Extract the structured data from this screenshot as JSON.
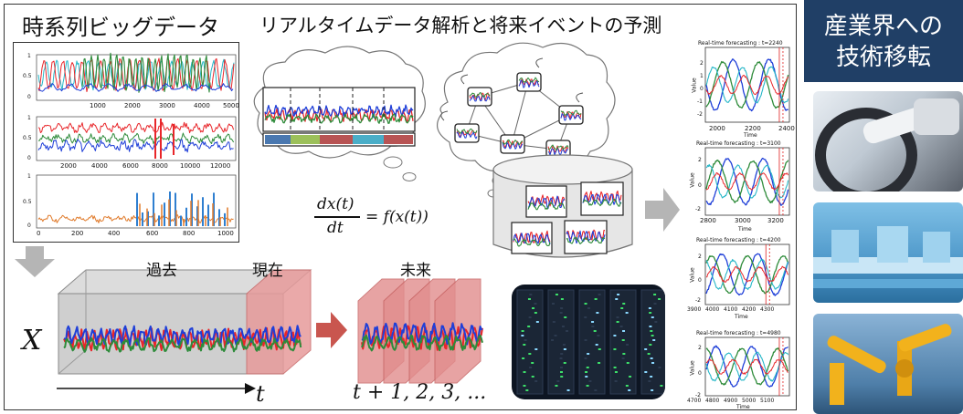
{
  "titles": {
    "big_data": "時系列ビッグデータ",
    "analysis": "リアルタイムデータ解析と将来イベントの予測",
    "industry_line1": "産業界への",
    "industry_line2": "技術移転"
  },
  "timeline": {
    "past": "過去",
    "present": "現在",
    "future": "未来",
    "x_symbol": "X",
    "t_symbol": "t",
    "future_steps": "t + 1, 2, 3, ..."
  },
  "equation": {
    "numerator": "dx(t)",
    "denominator": "dt",
    "rhs": "= f(x(t))"
  },
  "big_data_plots": {
    "plot1_ticks": [
      "1000",
      "2000",
      "3000",
      "4000",
      "5000"
    ],
    "plot2_ticks": [
      "2000",
      "4000",
      "6000",
      "8000",
      "10000",
      "12000"
    ],
    "plot3_ticks": [
      "0",
      "200",
      "400",
      "600",
      "800",
      "1000"
    ],
    "y_ticks": [
      "1",
      "0.5",
      "0"
    ]
  },
  "forecast_plots": [
    {
      "title": "Real-time forecasting : t=2240",
      "ticks": [
        "2000",
        "2200",
        "2400"
      ],
      "xlabel": "Time",
      "ylabel": "Value"
    },
    {
      "title": "Real-time forecasting : t=3100",
      "ticks": [
        "2800",
        "3000",
        "3200"
      ],
      "xlabel": "Time",
      "ylabel": "Value"
    },
    {
      "title": "Real-time forecasting : t=4200",
      "ticks": [
        "3900",
        "4000",
        "4100",
        "4200",
        "4300"
      ],
      "xlabel": "Time",
      "ylabel": "Value"
    },
    {
      "title": "Real-time forecasting : t=4980",
      "ticks": [
        "4700",
        "4800",
        "4900",
        "5000",
        "5100"
      ],
      "xlabel": "Time",
      "ylabel": "Value"
    }
  ],
  "forecast_y_ticks": [
    "2",
    "1",
    "0",
    "-1",
    "-2"
  ],
  "colors": {
    "red": "#e8262a",
    "green": "#2e8b3a",
    "blue": "#1f3fd8",
    "cyan": "#26b7c8",
    "orange": "#e07a2a",
    "navy": "#203f66",
    "arrow_gray": "#b5b5b5",
    "arrow_red": "#c9564f"
  }
}
